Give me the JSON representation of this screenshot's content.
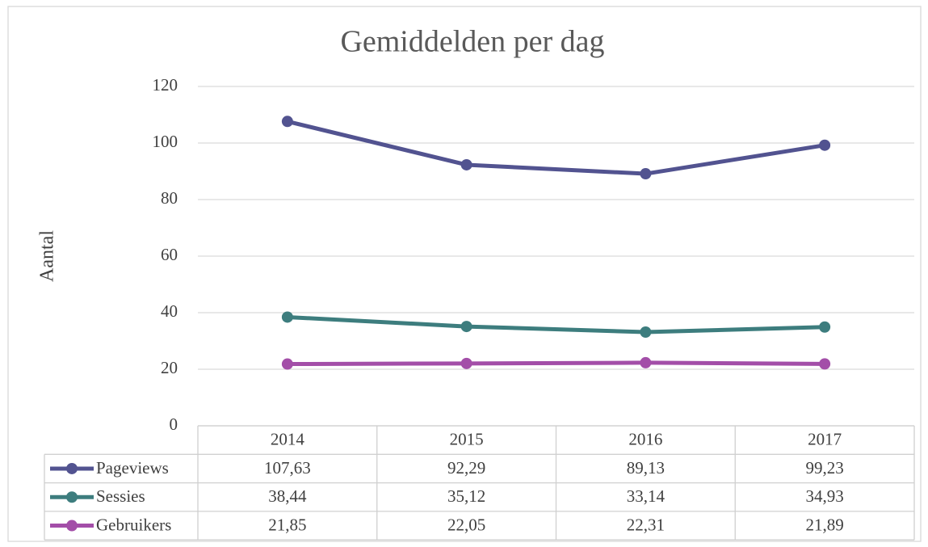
{
  "chart_data": {
    "type": "line",
    "title": "Gemiddelden per dag",
    "y_label": "Aantal",
    "categories": [
      "2014",
      "2015",
      "2016",
      "2017"
    ],
    "series": [
      {
        "name": "Pageviews",
        "color": "#525390",
        "values": [
          107.63,
          92.29,
          89.13,
          99.23
        ],
        "value_labels": [
          "107,63",
          "92,29",
          "89,13",
          "99,23"
        ]
      },
      {
        "name": "Sessies",
        "color": "#3d7d7e",
        "values": [
          38.44,
          35.12,
          33.14,
          34.93
        ],
        "value_labels": [
          "38,44",
          "35,12",
          "33,14",
          "34,93"
        ]
      },
      {
        "name": "Gebruikers",
        "color": "#a34ea8",
        "values": [
          21.85,
          22.05,
          22.31,
          21.89
        ],
        "value_labels": [
          "21,85",
          "22,05",
          "22,31",
          "21,89"
        ]
      }
    ],
    "ylim": [
      0,
      120
    ],
    "yticks": [
      0,
      20,
      40,
      60,
      80,
      100,
      120
    ],
    "grid": true,
    "data_table": true
  }
}
